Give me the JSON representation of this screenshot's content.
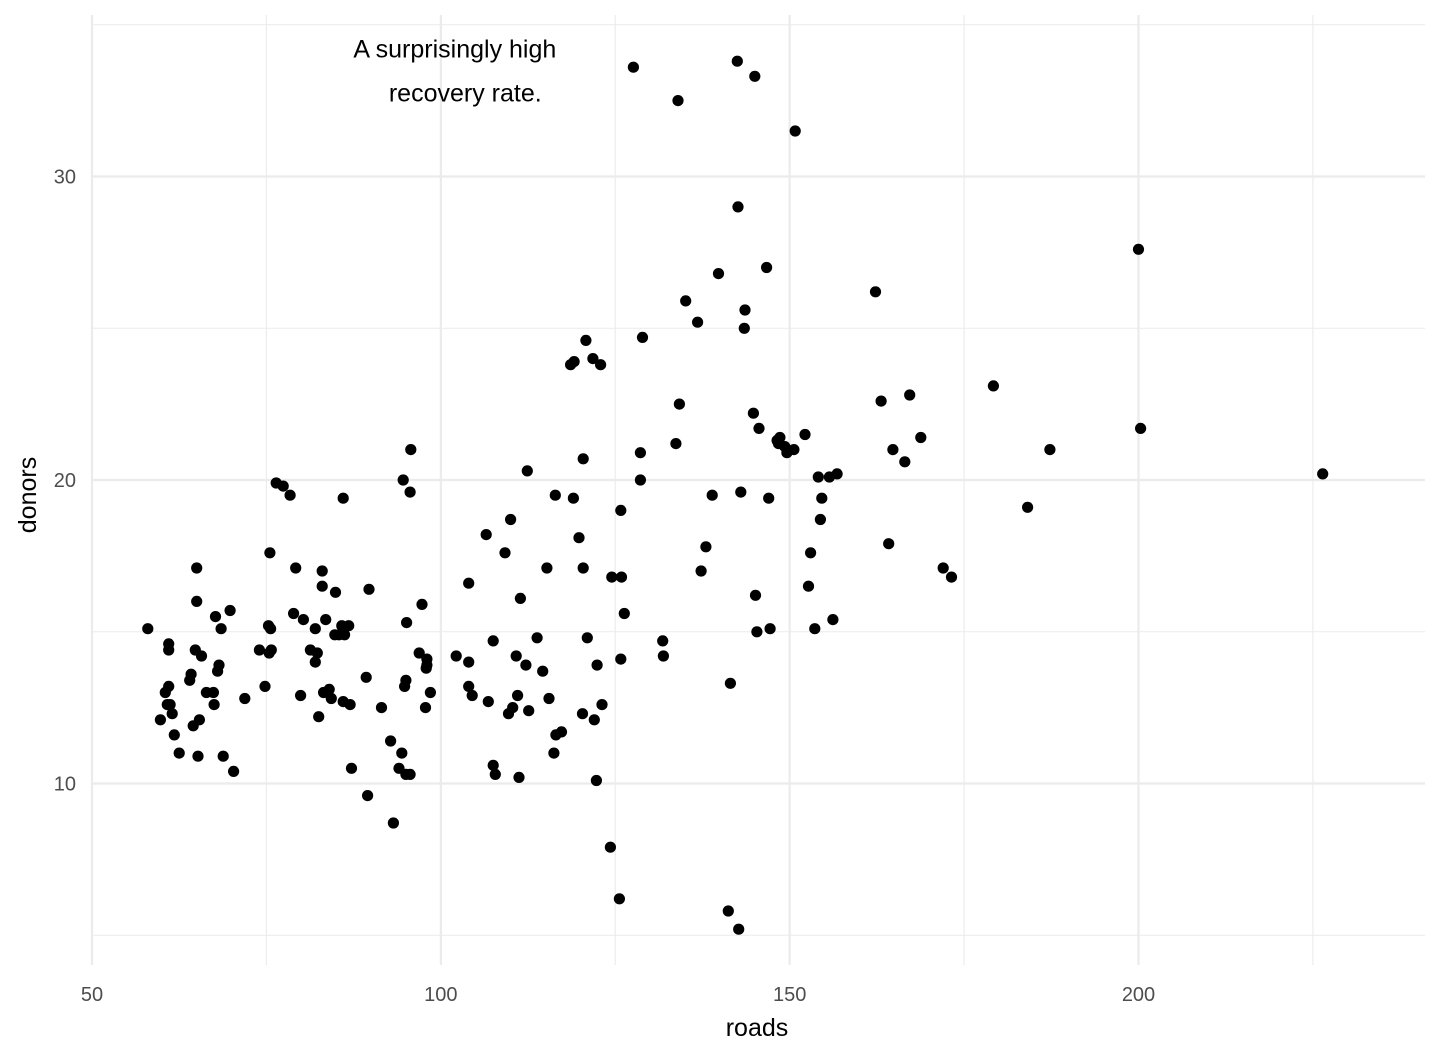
{
  "chart_data": {
    "type": "scatter",
    "title": "",
    "xlabel": "roads",
    "ylabel": "donors",
    "xlim": [
      50,
      240
    ],
    "ylim": [
      5,
      35.3
    ],
    "x_ticks": [
      50,
      100,
      150,
      200
    ],
    "y_ticks": [
      10,
      20,
      30
    ],
    "grid": true,
    "legend": "none",
    "point_color": "#000000",
    "annotation": {
      "lines": [
        "A surprisingly high",
        " recovery rate."
      ],
      "x": 104.5,
      "y": 33.5
    },
    "points": [
      [
        58,
        15.1
      ],
      [
        59.8,
        12.1
      ],
      [
        60.5,
        13
      ],
      [
        60.8,
        12.6
      ],
      [
        61,
        14.4
      ],
      [
        61,
        14.6
      ],
      [
        61,
        13.2
      ],
      [
        61.2,
        12.6
      ],
      [
        61.5,
        12.3
      ],
      [
        61.8,
        11.6
      ],
      [
        62.5,
        11
      ],
      [
        64,
        13.4
      ],
      [
        64.2,
        13.6
      ],
      [
        64.5,
        11.9
      ],
      [
        64.8,
        14.4
      ],
      [
        65,
        17.1
      ],
      [
        65,
        16
      ],
      [
        65.2,
        10.9
      ],
      [
        65.4,
        12.1
      ],
      [
        65.7,
        14.2
      ],
      [
        66.4,
        13
      ],
      [
        67.4,
        13
      ],
      [
        67.5,
        12.6
      ],
      [
        67.7,
        15.5
      ],
      [
        68,
        13.7
      ],
      [
        68.2,
        13.9
      ],
      [
        68.5,
        15.1
      ],
      [
        68.8,
        10.9
      ],
      [
        69.8,
        15.7
      ],
      [
        70.3,
        10.4
      ],
      [
        71.9,
        12.8
      ],
      [
        74,
        14.4
      ],
      [
        74.8,
        13.2
      ],
      [
        75.3,
        15.2
      ],
      [
        75.4,
        14.3
      ],
      [
        75.5,
        17.6
      ],
      [
        75.6,
        15.1
      ],
      [
        75.7,
        14.4
      ],
      [
        76.4,
        19.9
      ],
      [
        77.4,
        19.8
      ],
      [
        78.4,
        19.5
      ],
      [
        78.9,
        15.6
      ],
      [
        79.2,
        17.1
      ],
      [
        79.9,
        12.9
      ],
      [
        80.3,
        15.4
      ],
      [
        81.3,
        14.4
      ],
      [
        82,
        15.1
      ],
      [
        82,
        14
      ],
      [
        82.3,
        14.3
      ],
      [
        82.5,
        12.2
      ],
      [
        83,
        17
      ],
      [
        83,
        16.5
      ],
      [
        83.2,
        13
      ],
      [
        83.5,
        15.4
      ],
      [
        84,
        13.1
      ],
      [
        84.3,
        12.8
      ],
      [
        84.8,
        14.9
      ],
      [
        84.9,
        16.3
      ],
      [
        85.4,
        14.9
      ],
      [
        85.8,
        15.2
      ],
      [
        86,
        19.4
      ],
      [
        86,
        12.7
      ],
      [
        86.2,
        14.9
      ],
      [
        86.8,
        15.2
      ],
      [
        87,
        12.6
      ],
      [
        87.2,
        10.5
      ],
      [
        89.3,
        13.5
      ],
      [
        89.5,
        9.6
      ],
      [
        89.7,
        16.4
      ],
      [
        91.5,
        12.5
      ],
      [
        92.8,
        11.4
      ],
      [
        93.2,
        8.7
      ],
      [
        94,
        10.5
      ],
      [
        94.4,
        11
      ],
      [
        94.6,
        20
      ],
      [
        94.8,
        13.2
      ],
      [
        95,
        10.3
      ],
      [
        95,
        13.4
      ],
      [
        95.1,
        15.3
      ],
      [
        95.6,
        10.3
      ],
      [
        95.6,
        19.6
      ],
      [
        95.7,
        21
      ],
      [
        96.9,
        14.3
      ],
      [
        97.3,
        15.9
      ],
      [
        97.8,
        12.5
      ],
      [
        97.9,
        13.8
      ],
      [
        98,
        14.1
      ],
      [
        98,
        13.9
      ],
      [
        98.5,
        13
      ],
      [
        102.2,
        14.2
      ],
      [
        104,
        16.6
      ],
      [
        104,
        14
      ],
      [
        104,
        13.2
      ],
      [
        104.5,
        12.9
      ],
      [
        106.5,
        18.2
      ],
      [
        106.8,
        12.7
      ],
      [
        107.5,
        10.6
      ],
      [
        107.5,
        14.7
      ],
      [
        107.8,
        10.3
      ],
      [
        109.2,
        17.6
      ],
      [
        109.7,
        12.3
      ],
      [
        110,
        18.7
      ],
      [
        110.3,
        12.5
      ],
      [
        110.8,
        14.2
      ],
      [
        111,
        12.9
      ],
      [
        111.2,
        10.2
      ],
      [
        111.4,
        16.1
      ],
      [
        112.2,
        13.9
      ],
      [
        112.4,
        20.3
      ],
      [
        112.6,
        12.4
      ],
      [
        113.8,
        14.8
      ],
      [
        114.6,
        13.7
      ],
      [
        115.2,
        17.1
      ],
      [
        115.5,
        12.8
      ],
      [
        116.2,
        11
      ],
      [
        116.4,
        19.5
      ],
      [
        116.5,
        11.6
      ],
      [
        117.3,
        11.7
      ],
      [
        118.6,
        23.8
      ],
      [
        119,
        19.4
      ],
      [
        119.1,
        23.9
      ],
      [
        119.8,
        18.1
      ],
      [
        120.3,
        12.3
      ],
      [
        120.4,
        17.1
      ],
      [
        120.4,
        20.7
      ],
      [
        120.8,
        24.6
      ],
      [
        121,
        14.8
      ],
      [
        121.8,
        24
      ],
      [
        122,
        12.1
      ],
      [
        122.3,
        10.1
      ],
      [
        122.4,
        13.9
      ],
      [
        122.9,
        23.8
      ],
      [
        123.1,
        12.6
      ],
      [
        124.3,
        7.9
      ],
      [
        124.5,
        16.8
      ],
      [
        125.6,
        6.2
      ],
      [
        125.8,
        14.1
      ],
      [
        125.8,
        19
      ],
      [
        125.9,
        16.8
      ],
      [
        126.3,
        15.6
      ],
      [
        127.6,
        33.6
      ],
      [
        128.6,
        20.9
      ],
      [
        128.6,
        20
      ],
      [
        128.9,
        24.7
      ],
      [
        131.8,
        14.7
      ],
      [
        131.9,
        14.2
      ],
      [
        133.7,
        21.2
      ],
      [
        134,
        32.5
      ],
      [
        134.2,
        22.5
      ],
      [
        135.1,
        25.9
      ],
      [
        136.8,
        25.2
      ],
      [
        137.3,
        17
      ],
      [
        138,
        17.8
      ],
      [
        138.9,
        19.5
      ],
      [
        139.8,
        26.8
      ],
      [
        141.2,
        5.8
      ],
      [
        141.5,
        13.3
      ],
      [
        142.5,
        33.8
      ],
      [
        142.6,
        29
      ],
      [
        142.7,
        5.2
      ],
      [
        143,
        19.6
      ],
      [
        143.5,
        25
      ],
      [
        143.6,
        25.6
      ],
      [
        144.8,
        22.2
      ],
      [
        145,
        33.3
      ],
      [
        145.1,
        16.2
      ],
      [
        145.3,
        15
      ],
      [
        145.6,
        21.7
      ],
      [
        146.7,
        27
      ],
      [
        147,
        19.4
      ],
      [
        147.2,
        15.1
      ],
      [
        148.2,
        21.3
      ],
      [
        148.4,
        21.2
      ],
      [
        148.6,
        21.4
      ],
      [
        149.3,
        21.1
      ],
      [
        149.6,
        20.9
      ],
      [
        150.6,
        21
      ],
      [
        150.8,
        31.5
      ],
      [
        152.2,
        21.5
      ],
      [
        152.7,
        16.5
      ],
      [
        153,
        17.6
      ],
      [
        153.6,
        15.1
      ],
      [
        154.1,
        20.1
      ],
      [
        154.4,
        18.7
      ],
      [
        154.6,
        19.4
      ],
      [
        155.7,
        20.1
      ],
      [
        156.2,
        15.4
      ],
      [
        156.8,
        20.2
      ],
      [
        162.3,
        26.2
      ],
      [
        163.1,
        22.6
      ],
      [
        164.2,
        17.9
      ],
      [
        164.8,
        21
      ],
      [
        166.5,
        20.6
      ],
      [
        167.2,
        22.8
      ],
      [
        168.8,
        21.4
      ],
      [
        172,
        17.1
      ],
      [
        173.2,
        16.8
      ],
      [
        179.2,
        23.1
      ],
      [
        184.1,
        19.1
      ],
      [
        187.3,
        21
      ],
      [
        200,
        27.6
      ],
      [
        200.3,
        21.7
      ],
      [
        226.4,
        20.2
      ]
    ]
  }
}
